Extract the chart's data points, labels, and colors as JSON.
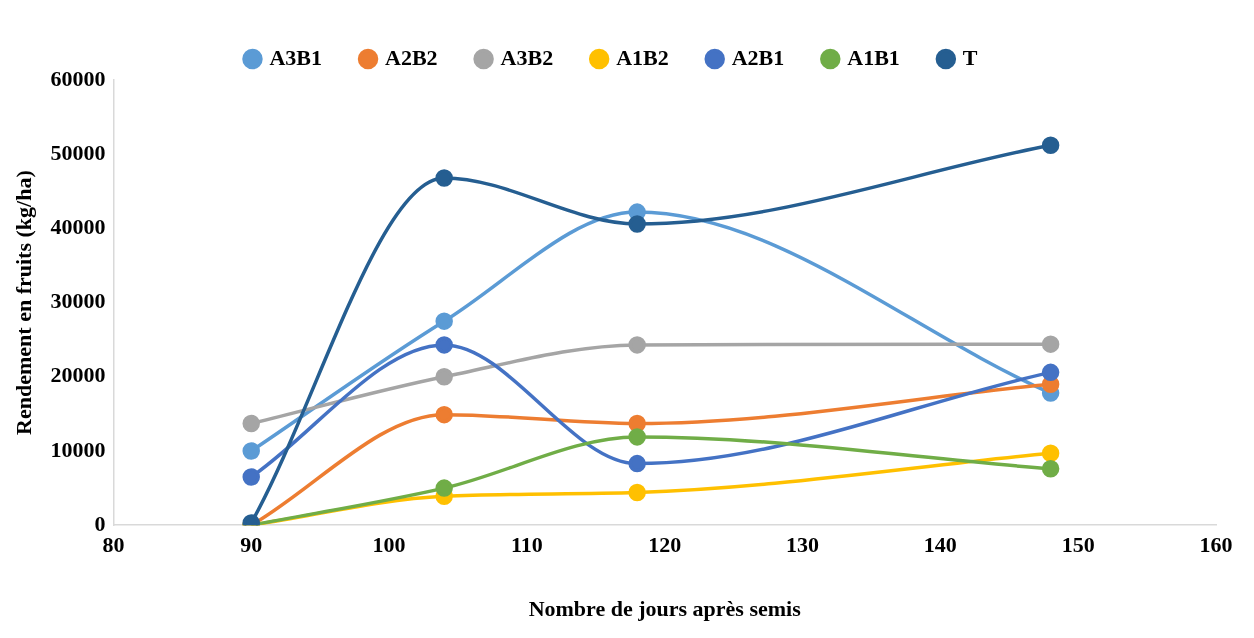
{
  "chart_data": {
    "type": "line",
    "xlabel": "Nombre de jours après semis",
    "ylabel": "Rendement en fruits (kg/ha)",
    "x": [
      90,
      104,
      118,
      148
    ],
    "series": [
      {
        "name": "A3B1",
        "color": "#5b9bd5",
        "values": [
          10000,
          27500,
          42200,
          17800
        ]
      },
      {
        "name": "A2B2",
        "color": "#ed7d31",
        "values": [
          0,
          14900,
          13700,
          19000
        ]
      },
      {
        "name": "A3B2",
        "color": "#a5a5a5",
        "values": [
          13700,
          20000,
          24300,
          24400
        ]
      },
      {
        "name": "A1B2",
        "color": "#ffc000",
        "values": [
          0,
          3900,
          4400,
          9700
        ]
      },
      {
        "name": "A2B1",
        "color": "#4472c4",
        "values": [
          6500,
          24300,
          8300,
          20600
        ]
      },
      {
        "name": "A1B1",
        "color": "#70ad47",
        "values": [
          0,
          5000,
          11900,
          7600
        ]
      },
      {
        "name": "T",
        "color": "#255e91",
        "values": [
          300,
          46800,
          40600,
          51200
        ]
      }
    ],
    "xlim": [
      80,
      160
    ],
    "xticks": [
      80,
      90,
      100,
      110,
      120,
      130,
      140,
      150,
      160
    ],
    "ylim": [
      0,
      60000
    ],
    "yticks": [
      0,
      10000,
      20000,
      30000,
      40000,
      50000,
      60000
    ],
    "grid": false,
    "legend": "top",
    "marker": "circle",
    "line_style": "solid"
  }
}
